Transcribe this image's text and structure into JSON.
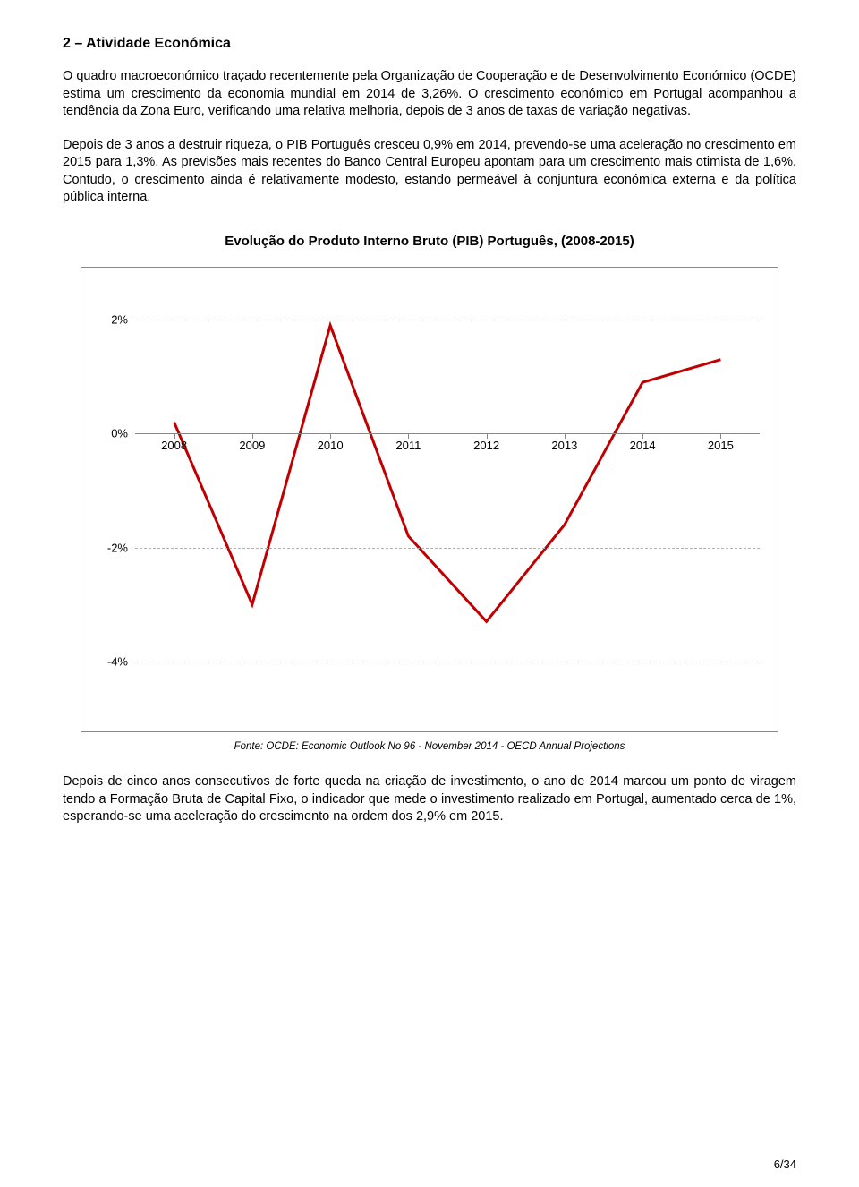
{
  "heading": "2 – Atividade Económica",
  "paragraphs": [
    "O quadro macroeconómico traçado recentemente pela Organização de Cooperação e de Desenvolvimento Económico (OCDE) estima um crescimento da economia mundial em 2014 de 3,26%. O crescimento económico em Portugal acompanhou a tendência da Zona Euro, verificando uma relativa melhoria, depois de 3 anos de taxas de variação negativas.",
    "Depois de 3 anos a destruir riqueza, o PIB Português cresceu 0,9% em 2014, prevendo-se uma aceleração no crescimento em 2015 para 1,3%. As previsões mais recentes do Banco Central Europeu apontam para um crescimento mais otimista de 1,6%. Contudo, o crescimento ainda é relativamente modesto, estando permeável à conjuntura económica externa e da política pública interna."
  ],
  "chart": {
    "title": "Evolução do Produto Interno Bruto (PIB) Português, (2008-2015)",
    "type": "line",
    "x_labels": [
      "2008",
      "2009",
      "2010",
      "2011",
      "2012",
      "2013",
      "2014",
      "2015"
    ],
    "y_ticks": [
      2,
      0,
      -2,
      -4
    ],
    "y_tick_labels": [
      "2%",
      "0%",
      "-2%",
      "-4%"
    ],
    "ylim_top": 2.6,
    "ylim_bottom": -4.6,
    "values": [
      0.2,
      -3.0,
      1.9,
      -1.8,
      -3.3,
      -1.6,
      0.9,
      1.3
    ],
    "line_color": "#c00000",
    "line_width": 3,
    "grid_color": "#b0b0b0",
    "axis_color": "#888888",
    "background_color": "#ffffff",
    "label_fontsize": 13
  },
  "chart_source": "Fonte: OCDE: Economic Outlook No 96 - November 2014 - OECD Annual Projections",
  "closing_paragraph": "Depois de cinco anos consecutivos de forte queda na criação de investimento, o ano de 2014 marcou um ponto de viragem tendo a Formação Bruta de Capital Fixo, o indicador que mede o investimento realizado em Portugal, aumentado cerca de 1%, esperando-se uma aceleração do crescimento na ordem dos 2,9% em 2015.",
  "page_number": "6/34"
}
